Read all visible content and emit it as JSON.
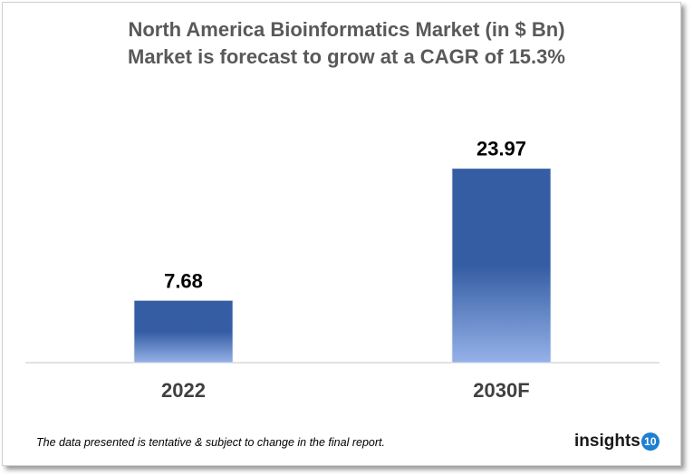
{
  "chart_data": {
    "type": "bar",
    "title": "North America Bioinformatics Market (in $ Bn)",
    "subtitle": "Market is forecast to grow at a CAGR of 15.3%",
    "categories": [
      "2022",
      "2030F"
    ],
    "values": [
      7.68,
      23.97
    ],
    "value_labels": [
      "7.68",
      "23.97"
    ],
    "ylim": [
      0,
      26.85
    ],
    "grid": false,
    "bar_color_top": "#355DA3",
    "bar_color_bottom": "#95B1E8"
  },
  "footer": {
    "disclaimer": "The data presented is tentative & subject to change in the final report.",
    "logo_text": "insights",
    "logo_badge": "10"
  }
}
